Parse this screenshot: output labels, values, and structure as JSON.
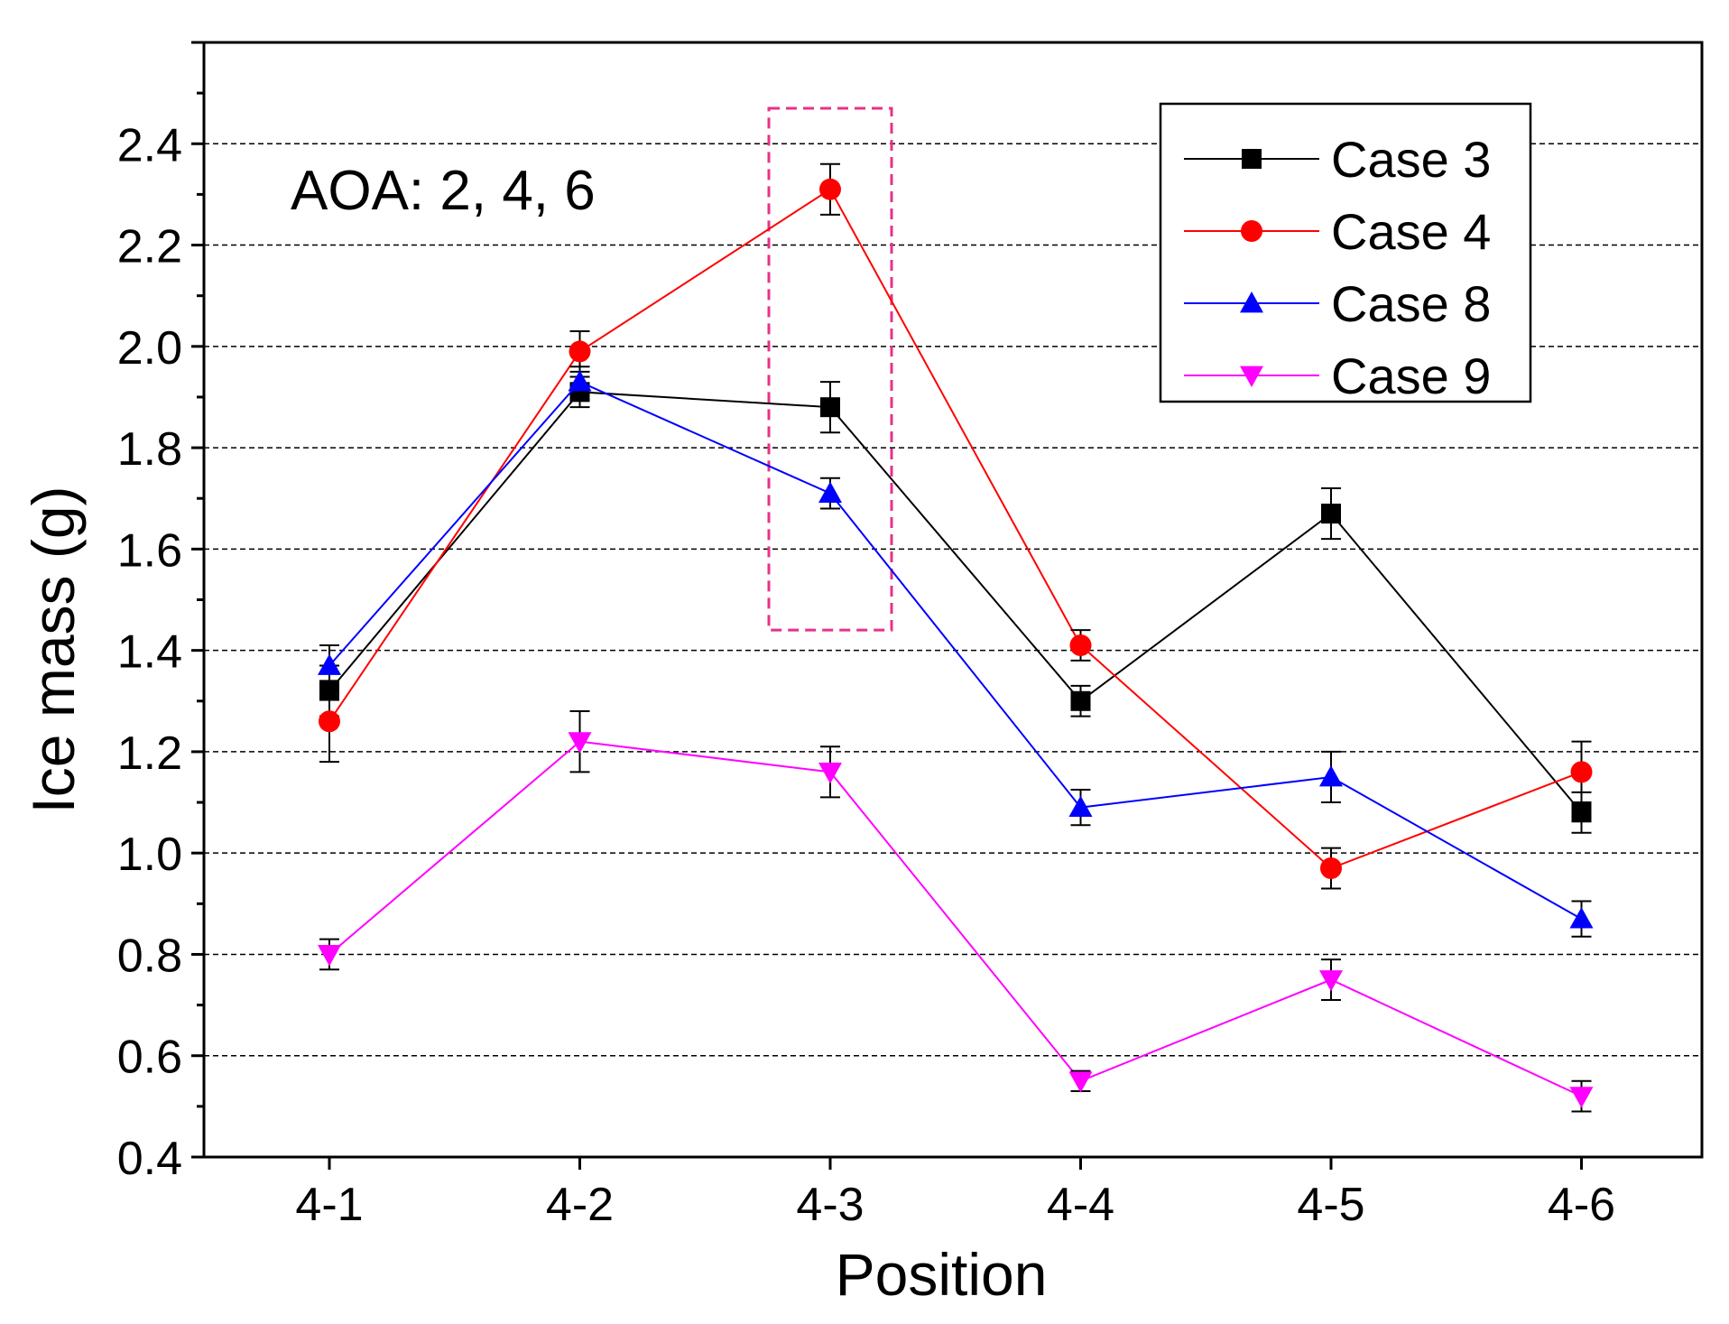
{
  "chart_data": {
    "type": "line",
    "title": "",
    "annotation": "AOA: 2, 4, 6",
    "xlabel": "Position",
    "ylabel": "Ice mass (g)",
    "categories": [
      "4-1",
      "4-2",
      "4-3",
      "4-4",
      "4-5",
      "4-6"
    ],
    "ylim": [
      0.4,
      2.6
    ],
    "yticks": [
      0.4,
      0.6,
      0.8,
      1.0,
      1.2,
      1.4,
      1.6,
      1.8,
      2.0,
      2.2,
      2.4
    ],
    "ytick_labels": [
      "0.4",
      "0.6",
      "0.8",
      "1.0",
      "1.2",
      "1.4",
      "1.6",
      "1.8",
      "2.0",
      "2.2",
      "2.4"
    ],
    "grid": "horizontal dashed",
    "legend_position": "top-right",
    "highlight": {
      "category": "4-3",
      "y_range": [
        1.44,
        2.47
      ],
      "style": "dashed",
      "color": "#e8318a"
    },
    "series": [
      {
        "name": "Case 3",
        "color": "#000000",
        "marker": "square",
        "values": [
          1.32,
          1.91,
          1.88,
          1.3,
          1.67,
          1.08
        ],
        "errors": [
          0.05,
          0.03,
          0.05,
          0.03,
          0.05,
          0.04
        ]
      },
      {
        "name": "Case 4",
        "color": "#ff0000",
        "marker": "circle",
        "values": [
          1.26,
          1.99,
          2.31,
          1.41,
          0.97,
          1.16
        ],
        "errors": [
          0.08,
          0.04,
          0.05,
          0.03,
          0.04,
          0.06
        ]
      },
      {
        "name": "Case 8",
        "color": "#0000ff",
        "marker": "triangle-up",
        "values": [
          1.37,
          1.93,
          1.71,
          1.09,
          1.15,
          0.87
        ],
        "errors": [
          0.04,
          0.03,
          0.03,
          0.035,
          0.05,
          0.035
        ]
      },
      {
        "name": "Case 9",
        "color": "#ff00ff",
        "marker": "triangle-down",
        "values": [
          0.8,
          1.22,
          1.16,
          0.55,
          0.75,
          0.52
        ],
        "errors": [
          0.03,
          0.06,
          0.05,
          0.02,
          0.04,
          0.03
        ]
      }
    ]
  }
}
